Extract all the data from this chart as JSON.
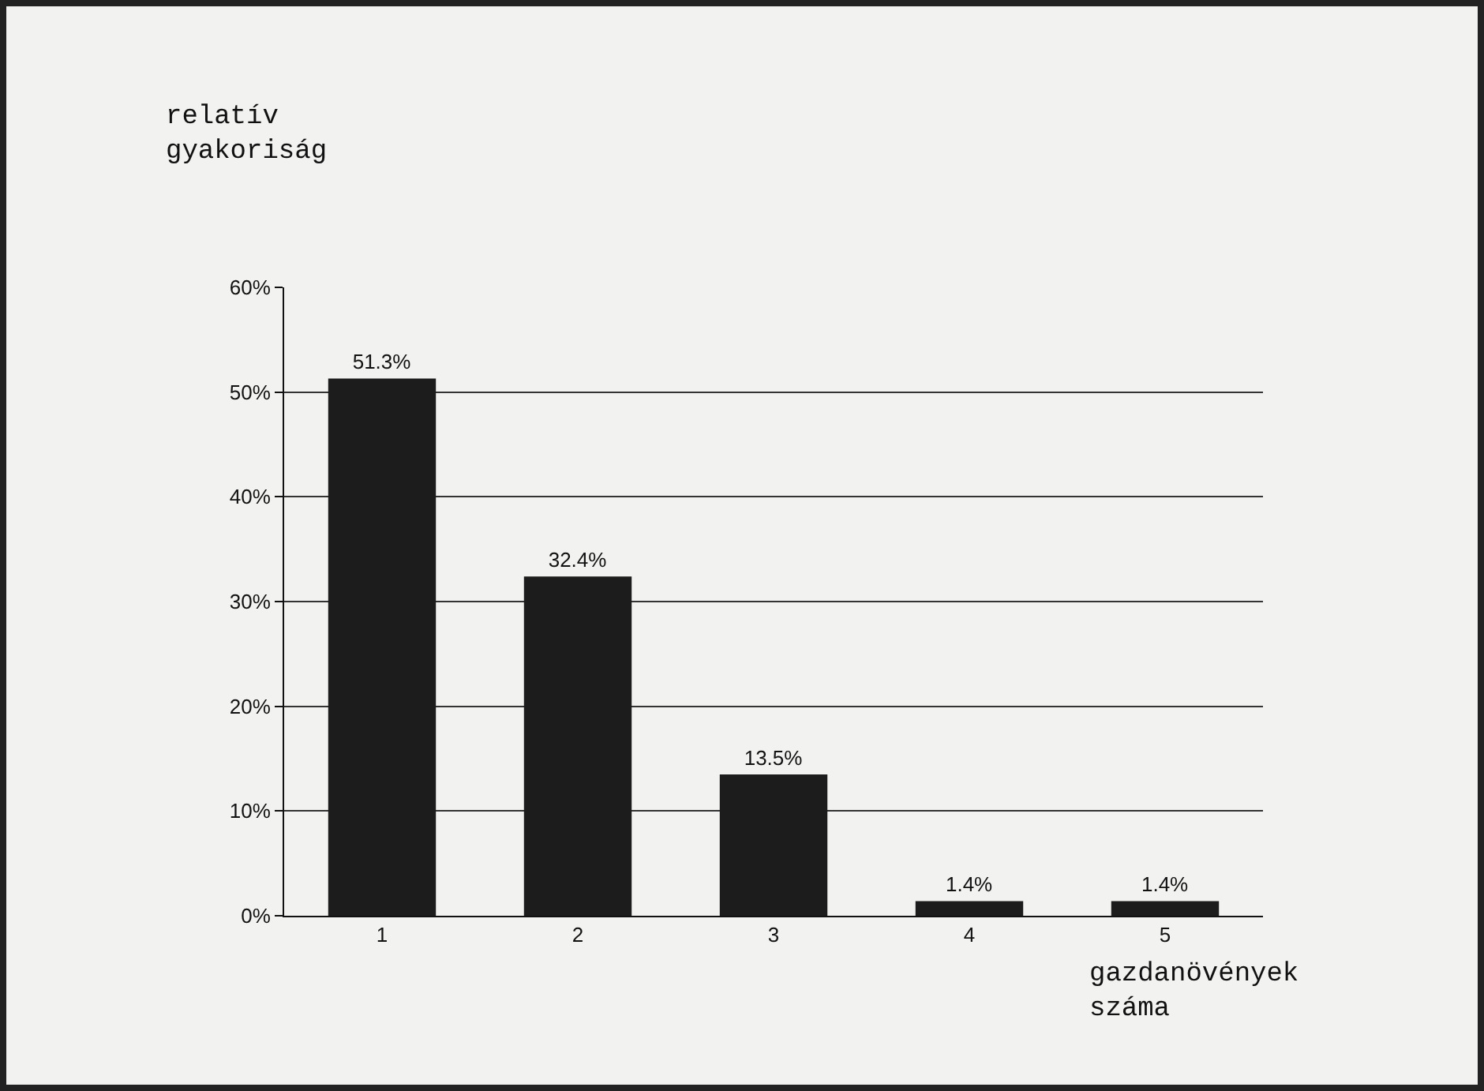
{
  "chart_data": {
    "type": "bar",
    "ylabel": "relatív\ngyakoriság",
    "xlabel": "gazdanövények\nszáma",
    "categories": [
      "1",
      "2",
      "3",
      "4",
      "5"
    ],
    "values": [
      51.3,
      32.4,
      13.5,
      1.4,
      1.4
    ],
    "value_labels": [
      "51.3%",
      "32.4%",
      "13.5%",
      "1.4%",
      "1.4%"
    ],
    "color": "#1c1c1c",
    "ylim": [
      0,
      60
    ],
    "yticks": [
      {
        "value": 0,
        "label": "0%"
      },
      {
        "value": 10,
        "label": "10%"
      },
      {
        "value": 20,
        "label": "20%"
      },
      {
        "value": 30,
        "label": "30%"
      },
      {
        "value": 40,
        "label": "40%"
      },
      {
        "value": 50,
        "label": "50%"
      },
      {
        "value": 60,
        "label": "60%"
      }
    ],
    "grid": "y"
  }
}
